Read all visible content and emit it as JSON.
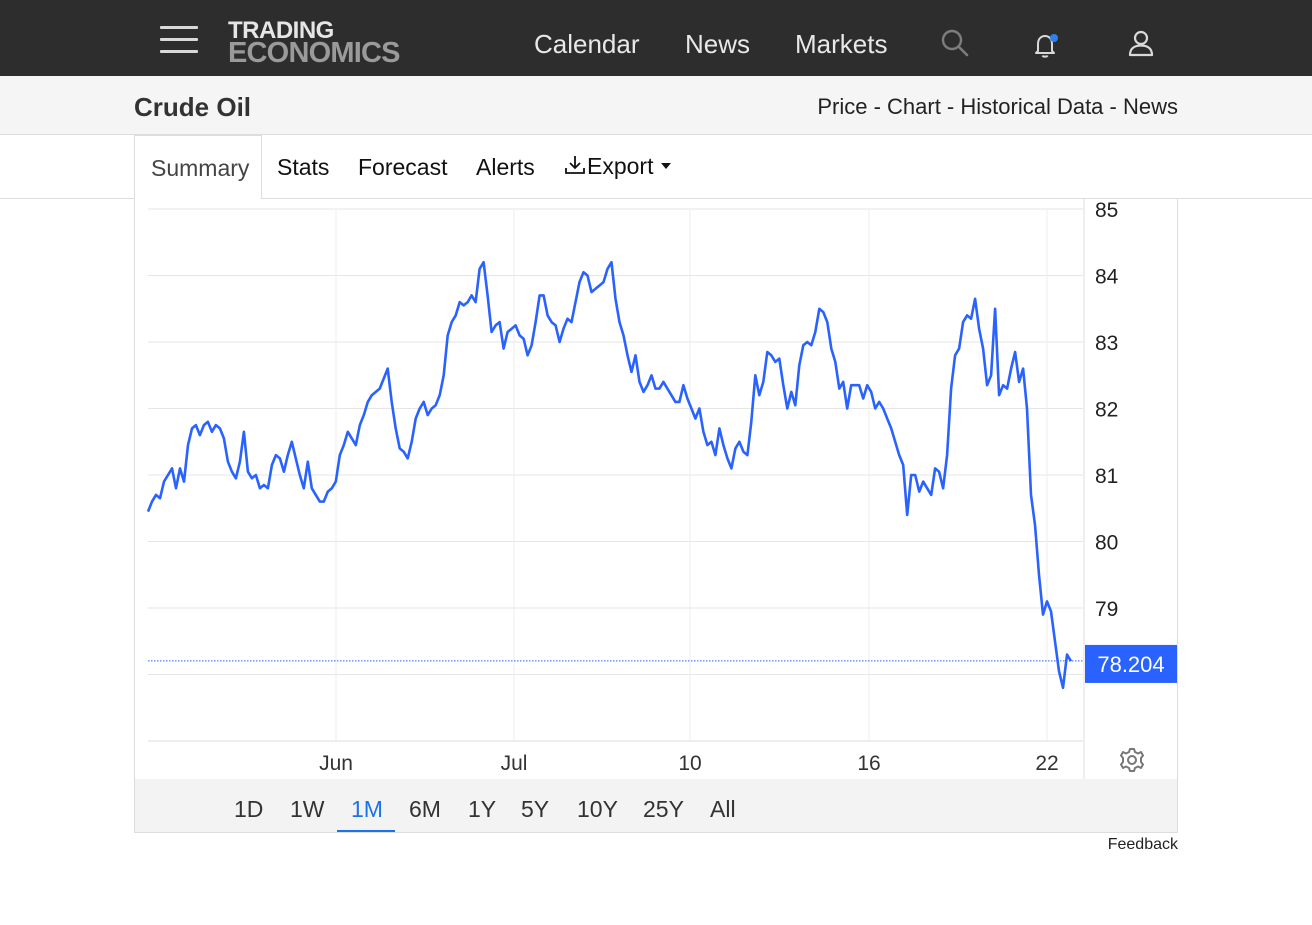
{
  "nav": {
    "logo_line1": "TRADING",
    "logo_line2": "ECONOMICS",
    "links": [
      "Calendar",
      "News",
      "Markets"
    ],
    "icons": [
      "menu-icon",
      "search-icon",
      "bell-icon",
      "user-icon"
    ]
  },
  "header": {
    "title": "Crude Oil",
    "breadcrumbs": [
      "Price",
      "Chart",
      "Historical Data",
      "News"
    ],
    "separator": " - "
  },
  "tabs": {
    "active": "Summary",
    "items": [
      "Stats",
      "Forecast",
      "Alerts"
    ],
    "export_label": "Export"
  },
  "chart_data": {
    "type": "line",
    "title": "",
    "xlabel": "",
    "ylabel": "",
    "ylim": [
      77,
      85
    ],
    "yticks": [
      79,
      80,
      81,
      82,
      83,
      84,
      85
    ],
    "x_tick_labels": [
      "Jun",
      "Jul",
      "10",
      "16",
      "22"
    ],
    "last_value": "78.204",
    "line_color": "#2962ff",
    "label_bg_color": "#2962ff",
    "grid": true,
    "series": [
      {
        "values": [
          80.45,
          80.6,
          80.7,
          80.65,
          80.9,
          81.0,
          81.1,
          80.8,
          81.1,
          80.9,
          81.45,
          81.7,
          81.75,
          81.6,
          81.75,
          81.8,
          81.65,
          81.75,
          81.7,
          81.55,
          81.2,
          81.05,
          80.95,
          81.2,
          81.65,
          81.05,
          80.95,
          81.0,
          80.8,
          80.85,
          80.8,
          81.15,
          81.3,
          81.25,
          81.05,
          81.3,
          81.5,
          81.25,
          81.0,
          80.8,
          81.2,
          80.8,
          80.7,
          80.6,
          80.6,
          80.75,
          80.8,
          80.9,
          81.3,
          81.45,
          81.65,
          81.55,
          81.45,
          81.75,
          81.9,
          82.1,
          82.2,
          82.25,
          82.3,
          82.45,
          82.6,
          82.1,
          81.7,
          81.4,
          81.35,
          81.25,
          81.5,
          81.85,
          82.0,
          82.1,
          81.9,
          82.0,
          82.05,
          82.2,
          82.5,
          83.1,
          83.3,
          83.4,
          83.6,
          83.55,
          83.6,
          83.7,
          83.6,
          84.1,
          84.2,
          83.7,
          83.15,
          83.25,
          83.3,
          82.9,
          83.15,
          83.2,
          83.25,
          83.1,
          83.05,
          82.8,
          82.95,
          83.3,
          83.7,
          83.7,
          83.4,
          83.3,
          83.25,
          83.0,
          83.2,
          83.35,
          83.3,
          83.6,
          83.9,
          84.05,
          84.0,
          83.75,
          83.8,
          83.85,
          83.9,
          84.1,
          84.2,
          83.65,
          83.3,
          83.1,
          82.8,
          82.55,
          82.8,
          82.4,
          82.25,
          82.35,
          82.5,
          82.3,
          82.3,
          82.4,
          82.3,
          82.2,
          82.1,
          82.1,
          82.35,
          82.15,
          82.0,
          81.85,
          82.0,
          81.65,
          81.45,
          81.5,
          81.3,
          81.7,
          81.45,
          81.25,
          81.1,
          81.4,
          81.5,
          81.35,
          81.3,
          81.8,
          82.5,
          82.2,
          82.4,
          82.85,
          82.8,
          82.7,
          82.75,
          82.35,
          82.0,
          82.25,
          82.05,
          82.65,
          82.95,
          83.0,
          82.95,
          83.15,
          83.5,
          83.45,
          83.3,
          82.9,
          82.7,
          82.3,
          82.4,
          82.0,
          82.35,
          82.35,
          82.35,
          82.15,
          82.35,
          82.25,
          82.0,
          82.1,
          82.0,
          81.85,
          81.7,
          81.5,
          81.3,
          81.15,
          80.4,
          81.0,
          81.0,
          80.75,
          80.9,
          80.8,
          80.7,
          81.1,
          81.05,
          80.8,
          81.3,
          82.3,
          82.8,
          82.9,
          83.3,
          83.4,
          83.35,
          83.65,
          83.2,
          82.9,
          82.35,
          82.5,
          83.5,
          82.2,
          82.35,
          82.3,
          82.6,
          82.85,
          82.4,
          82.6,
          82.0,
          80.7,
          80.25,
          79.5,
          78.9,
          79.1,
          78.95,
          78.5,
          78.05,
          77.8,
          78.3,
          78.2
        ]
      }
    ]
  },
  "range_buttons": [
    "1D",
    "1W",
    "1M",
    "6M",
    "1Y",
    "5Y",
    "10Y",
    "25Y",
    "All"
  ],
  "range_active": "1M",
  "feedback_label": "Feedback"
}
